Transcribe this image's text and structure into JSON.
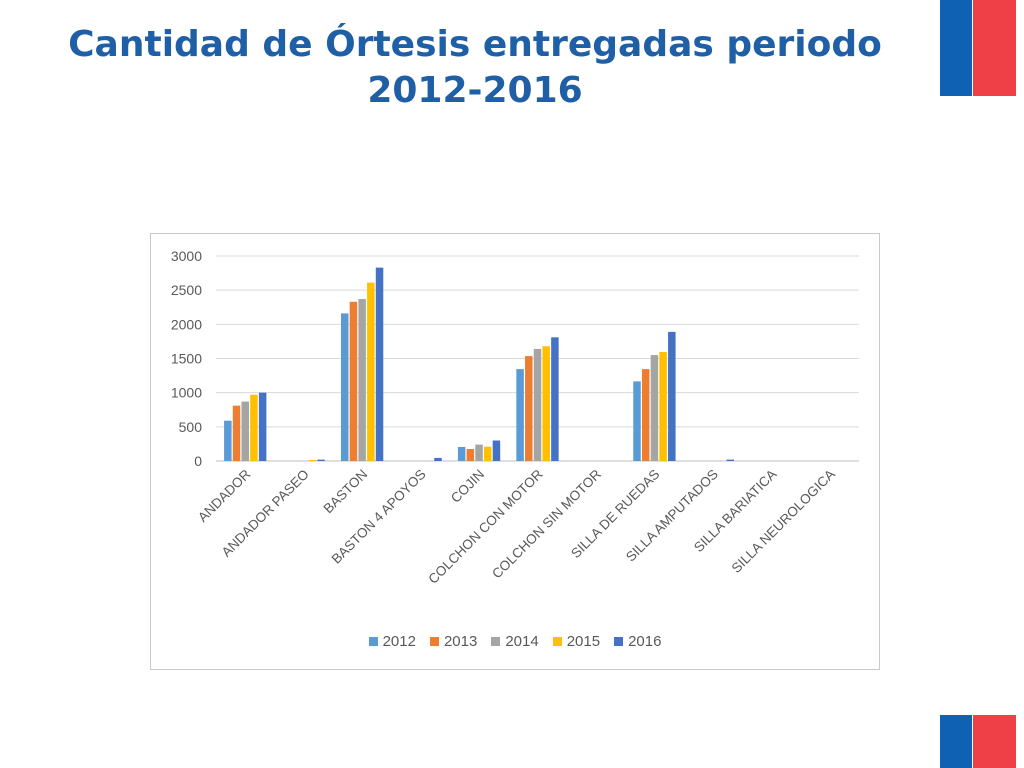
{
  "slide": {
    "title_line1": "Cantidad de Órtesis entregadas periodo",
    "title_line2": "2012-2016"
  },
  "colors": {
    "title": "#1f5fa6",
    "flag_blue": "#0f62b3",
    "flag_red": "#ee4046",
    "grid": "#d9d9d9",
    "tick_text": "#595959"
  },
  "chart_data": {
    "type": "bar",
    "title": "",
    "xlabel": "",
    "ylabel": "",
    "ylim": [
      0,
      3000
    ],
    "yticks": [
      0,
      500,
      1000,
      1500,
      2000,
      2500,
      3000
    ],
    "grid": true,
    "legend_position": "bottom",
    "categories": [
      "ANDADOR",
      "ANDADOR PASEO",
      "BASTON",
      "BASTON 4 APOYOS",
      "COJIN",
      "COLCHON CON MOTOR",
      "COLCHON SIN MOTOR",
      "SILLA DE RUEDAS",
      "SILLA AMPUTADOS",
      "SILLA BARIATICA",
      "SILLA NEUROLOGICA"
    ],
    "series": [
      {
        "name": "2012",
        "color": "#5b9bd5",
        "values": [
          590,
          0,
          2160,
          0,
          205,
          1345,
          0,
          1165,
          0,
          0,
          0
        ]
      },
      {
        "name": "2013",
        "color": "#ed7d31",
        "values": [
          810,
          0,
          2330,
          0,
          175,
          1535,
          0,
          1345,
          0,
          0,
          0
        ]
      },
      {
        "name": "2014",
        "color": "#a5a5a5",
        "values": [
          870,
          0,
          2370,
          0,
          240,
          1640,
          0,
          1550,
          0,
          0,
          0
        ]
      },
      {
        "name": "2015",
        "color": "#ffc000",
        "values": [
          970,
          15,
          2610,
          0,
          210,
          1680,
          0,
          1595,
          0,
          0,
          0
        ]
      },
      {
        "name": "2016",
        "color": "#4472c4",
        "values": [
          1000,
          20,
          2830,
          45,
          300,
          1810,
          0,
          1890,
          20,
          0,
          0
        ]
      }
    ]
  }
}
